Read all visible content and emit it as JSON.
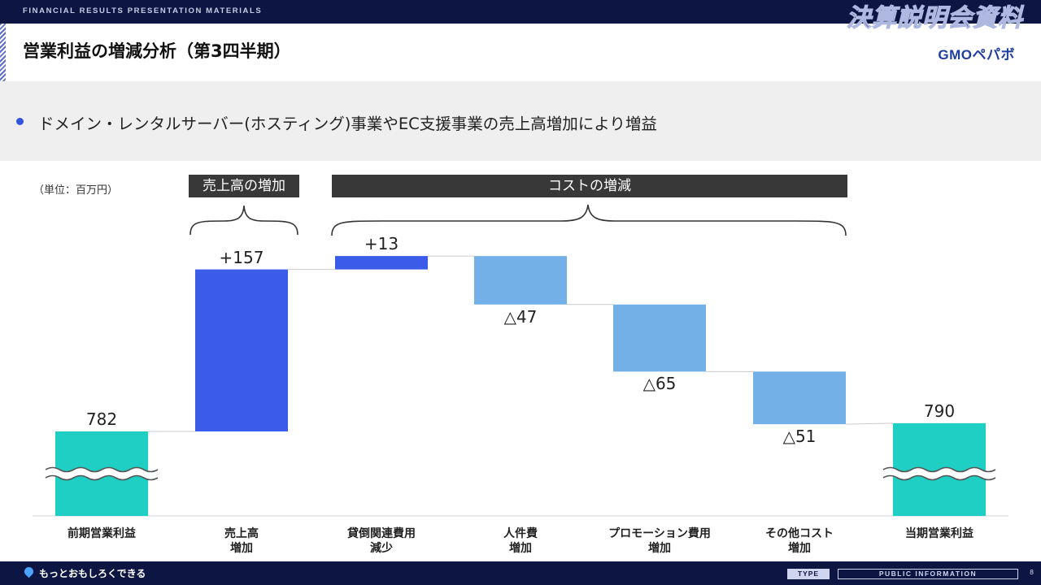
{
  "header": {
    "band_text": "FINANCIAL RESULTS PRESENTATION MATERIALS",
    "badge": "決算説明会資料"
  },
  "title": "営業利益の増減分析（第3四半期）",
  "logo": "GMOペパボ",
  "lead": "ドメイン・レンタルサーバー(ホスティング)事業やEC支援事業の売上高増加により増益",
  "unit": "（単位：百万円）",
  "groups": {
    "sales": "売上高の増加",
    "cost": "コストの増減"
  },
  "chart_data": {
    "type": "waterfall",
    "unit": "百万円",
    "categories": [
      "前期営業利益",
      "売上高\n増加",
      "貸倒関連費用\n減少",
      "人件費\n増加",
      "プロモーション費用\n増加",
      "その他コスト\n増加",
      "当期営業利益"
    ],
    "values": [
      782,
      157,
      13,
      -47,
      -65,
      -51,
      790
    ],
    "labels": [
      "782",
      "+157",
      "+13",
      "△47",
      "△65",
      "△51",
      "790"
    ],
    "kinds": [
      "total",
      "increase",
      "increase",
      "decrease",
      "decrease",
      "decrease",
      "total"
    ],
    "axis_break": true,
    "colors": {
      "total": "#1fcfc4",
      "increase": "#3a5ce8",
      "decrease": "#74b0e8"
    }
  },
  "footer": {
    "slogan": "もっとおもしろくできる",
    "type_label": "TYPE",
    "type_value": "PUBLIC INFORMATION",
    "page": "8"
  }
}
